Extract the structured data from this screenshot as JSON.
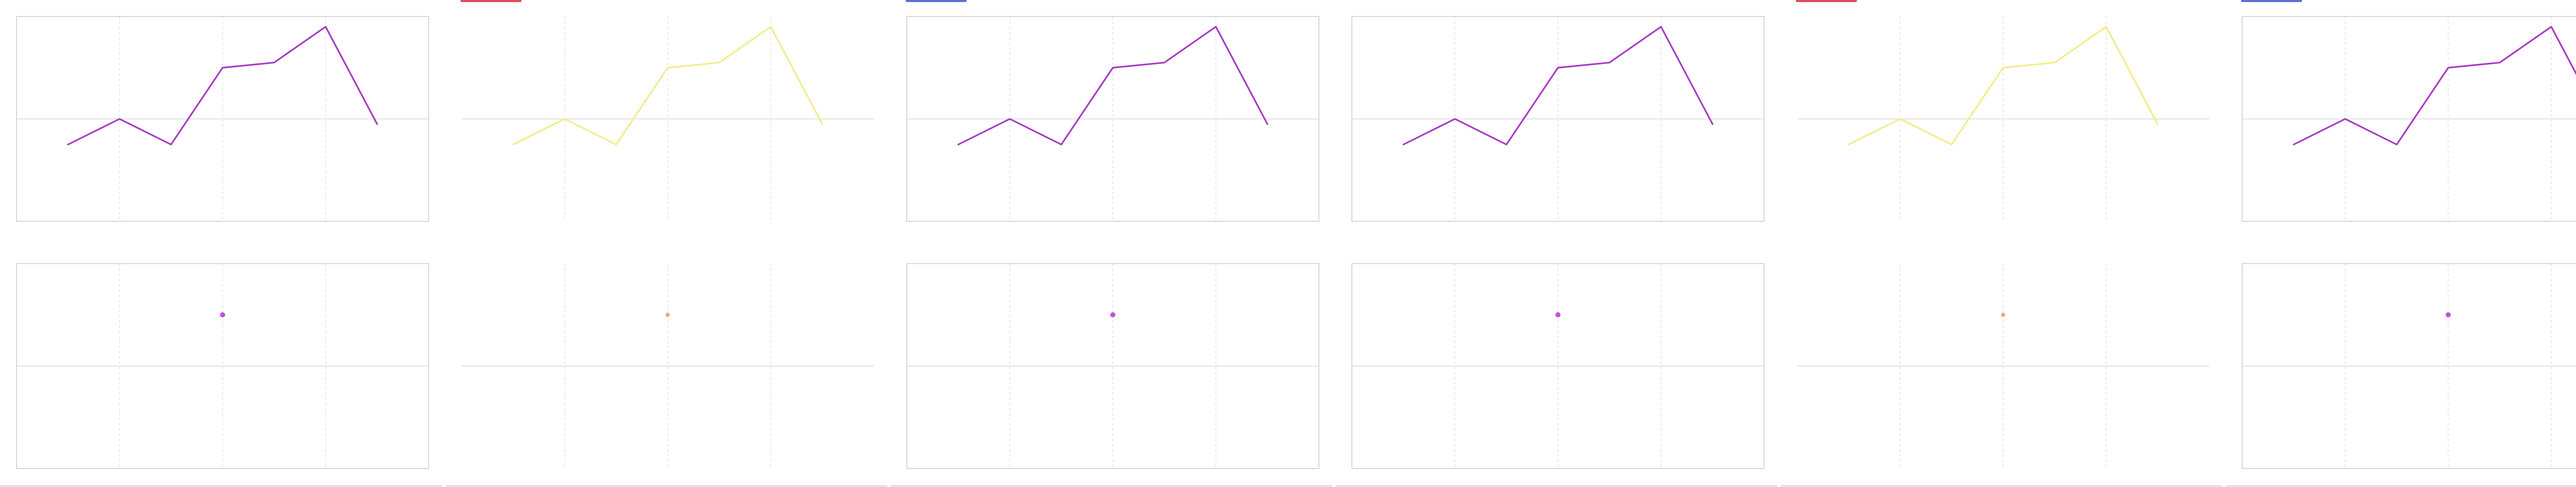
{
  "theme": {
    "gridline": "#dcdcdc",
    "axis": "#cfcfcf",
    "accent_red": "#e04a5a",
    "accent_blue": "#5b6fd6"
  },
  "panels": [
    {
      "line_color": "#a63bc2",
      "point_color": "#c155d8",
      "marker": "none",
      "bordered": true
    },
    {
      "line_color": "#f2ec8c",
      "point_color": "#f5a86e",
      "marker": "red",
      "bordered": false
    },
    {
      "line_color": "#a63bc2",
      "point_color": "#c155d8",
      "marker": "blue",
      "bordered": true
    },
    {
      "line_color": "#a63bc2",
      "point_color": "#c155d8",
      "marker": "none",
      "bordered": true
    },
    {
      "line_color": "#f2ec8c",
      "point_color": "#f5a86e",
      "marker": "red",
      "bordered": false
    },
    {
      "line_color": "#a63bc2",
      "point_color": "#c155d8",
      "marker": "blue",
      "bordered": true
    }
  ],
  "chart_data": [
    {
      "type": "line",
      "title": "",
      "xlabel": "",
      "ylabel": "",
      "x": [
        1,
        2,
        3,
        4,
        5,
        6,
        7
      ],
      "series": [
        {
          "values": [
            1.5,
            2.0,
            1.5,
            3.0,
            3.1,
            3.8,
            1.9
          ]
        }
      ],
      "xlim": [
        0,
        8
      ],
      "ylim": [
        0,
        4
      ],
      "grid": true
    },
    {
      "type": "scatter",
      "title": "",
      "xlabel": "",
      "ylabel": "",
      "points": [
        {
          "x": 0.5,
          "y": 0.75
        }
      ],
      "xlim": [
        0,
        1
      ],
      "ylim": [
        0,
        1
      ],
      "grid": true
    }
  ]
}
